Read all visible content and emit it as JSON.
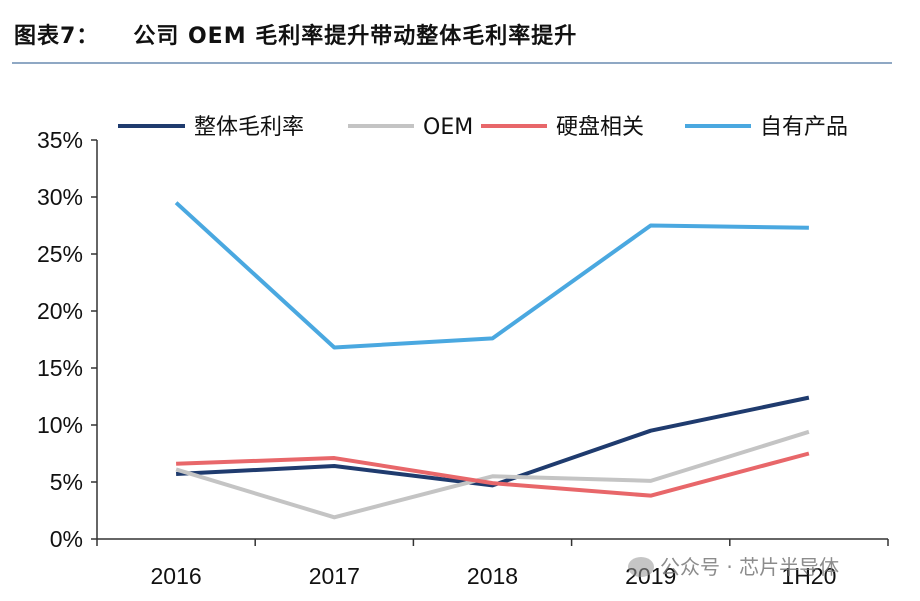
{
  "figure": {
    "number": "图表7：",
    "title": "公司 OEM 毛利率提升带动整体毛利率提升"
  },
  "watermark": "公众号 · 芯片半导体",
  "chart_data": {
    "type": "line",
    "categories": [
      "2016",
      "2017",
      "2018",
      "2019",
      "1H20"
    ],
    "ylim": [
      0,
      35
    ],
    "y_ticks": [
      0,
      5,
      10,
      15,
      20,
      25,
      30,
      35
    ],
    "y_tick_labels": [
      "0%",
      "5%",
      "10%",
      "15%",
      "20%",
      "25%",
      "30%",
      "35%"
    ],
    "grid": false,
    "legend_position": "top",
    "series": [
      {
        "name": "整体毛利率",
        "color": "#1f3b6e",
        "values": [
          5.7,
          6.4,
          4.7,
          9.5,
          12.4
        ]
      },
      {
        "name": "OEM",
        "color": "#c4c4c4",
        "values": [
          6.1,
          1.9,
          5.5,
          5.1,
          9.4
        ]
      },
      {
        "name": "硬盘相关",
        "color": "#e8676a",
        "values": [
          6.6,
          7.1,
          4.9,
          3.8,
          7.5
        ]
      },
      {
        "name": "自有产品",
        "color": "#4aa8e0",
        "values": [
          29.5,
          16.8,
          17.6,
          27.5,
          27.3
        ]
      }
    ]
  }
}
